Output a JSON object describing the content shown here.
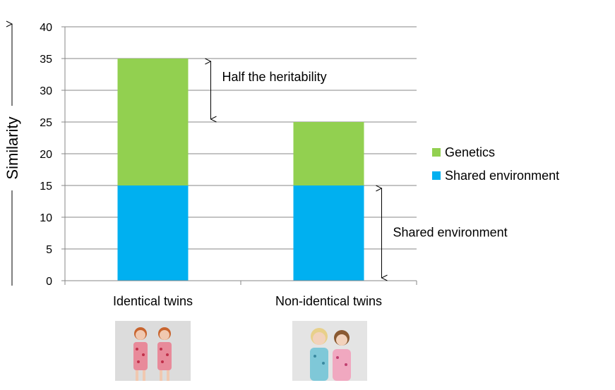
{
  "chart_data": {
    "type": "bar",
    "stacked": true,
    "categories": [
      "Identical twins",
      "Non-identical twins"
    ],
    "series": [
      {
        "name": "Shared environment",
        "values": [
          15,
          15
        ],
        "color": "#00B0F0"
      },
      {
        "name": "Genetics",
        "values": [
          20,
          10
        ],
        "color": "#92D050"
      }
    ],
    "legend_order": [
      "Genetics",
      "Shared environment"
    ],
    "legend_position": "right",
    "ylabel": "Similarity",
    "ylim": [
      0,
      40
    ],
    "yticks": [
      0,
      5,
      10,
      15,
      20,
      25,
      30,
      35,
      40
    ],
    "grid": true,
    "annotations": [
      {
        "text": "Half the heritability",
        "from": 25,
        "to": 35,
        "category": "Identical twins"
      },
      {
        "text": "Shared environment",
        "from": 0,
        "to": 15,
        "category": "Non-identical twins"
      }
    ]
  },
  "photos": [
    {
      "depicts": "identical-twin-girls-photo"
    },
    {
      "depicts": "non-identical-twin-girls-photo"
    }
  ]
}
